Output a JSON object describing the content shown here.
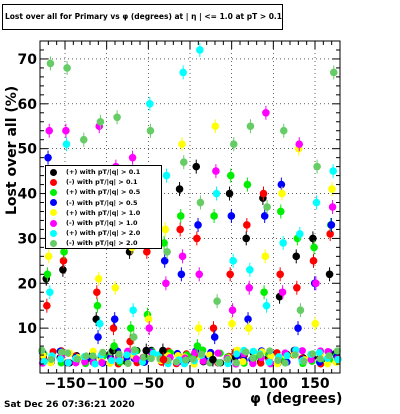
{
  "title": "Lost over all for Primary vs φ (degrees) at | η | <= 1.0 at pT > 0.11",
  "datestamp": "Sat Dec 26 07:36:21 2020",
  "chart_data": {
    "type": "scatter",
    "xlabel": "φ (degrees)",
    "ylabel": "Lost over all (%)",
    "xlim": [
      -180,
      180
    ],
    "ylim": [
      0,
      74
    ],
    "xticks": [
      -150,
      -100,
      -50,
      0,
      50,
      100,
      150
    ],
    "yticks": [
      10,
      20,
      30,
      40,
      50,
      60,
      70
    ],
    "grid": true,
    "legend_position": "left-middle",
    "series": [
      {
        "name": "(+) with pT/|q| > 0.1",
        "color": "#000000",
        "x": [
          -170,
          -150,
          -130,
          -110,
          -90,
          -70,
          -50,
          -30,
          -10,
          10,
          30,
          50,
          70,
          90,
          110,
          130,
          150,
          170
        ],
        "y": [
          21,
          23,
          31,
          12,
          5,
          27,
          5,
          5,
          41,
          46,
          3,
          40,
          30,
          39,
          17,
          26,
          30,
          22
        ]
      },
      {
        "name": "(-) with pT/|q| > 0.1",
        "color": "#ff0000",
        "x": [
          -170,
          -150,
          -130,
          -110,
          -90,
          -70,
          -50,
          -30,
          -10,
          10,
          30,
          50,
          70,
          90,
          110,
          130,
          150,
          170
        ],
        "y": [
          15,
          25,
          36,
          18,
          10,
          7,
          27,
          3,
          32,
          30,
          10,
          22,
          33,
          40,
          22,
          19,
          25,
          31
        ]
      },
      {
        "name": "(+) with pT/|q| > 0.5",
        "color": "#00ee00",
        "x": [
          -170,
          -150,
          -130,
          -110,
          -90,
          -70,
          -50,
          -30,
          -10,
          10,
          30,
          50,
          70,
          90,
          110,
          130,
          150,
          170
        ],
        "y": [
          22,
          27,
          42,
          15,
          6,
          10,
          13,
          29,
          35,
          6,
          35,
          44,
          42,
          18,
          36,
          30,
          28,
          33
        ]
      },
      {
        "name": "(-) with pT/|q| > 0.5",
        "color": "#0000ff",
        "x": [
          -170,
          -150,
          -130,
          -110,
          -90,
          -70,
          -50,
          -30,
          -10,
          10,
          30,
          50,
          70,
          90,
          110,
          130,
          150,
          170
        ],
        "y": [
          48,
          33,
          33,
          8,
          12,
          40,
          32,
          25,
          22,
          33,
          8,
          35,
          12,
          35,
          42,
          10,
          20,
          33
        ]
      },
      {
        "name": "(+) with pT/|q| > 1.0",
        "color": "#ffff00",
        "x": [
          -170,
          -150,
          -130,
          -110,
          -90,
          -70,
          -50,
          -30,
          -10,
          10,
          30,
          50,
          70,
          90,
          110,
          130,
          150,
          170
        ],
        "y": [
          26,
          29,
          30,
          21,
          19,
          28,
          12,
          32,
          51,
          10,
          55,
          11,
          10,
          26,
          40,
          50,
          11,
          41
        ]
      },
      {
        "name": "(-) with pT/|q| > 1.0",
        "color": "#ff00ff",
        "x": [
          -170,
          -150,
          -130,
          -110,
          -90,
          -70,
          -50,
          -30,
          -10,
          10,
          30,
          50,
          70,
          90,
          110,
          130,
          150,
          170
        ],
        "y": [
          54,
          54,
          31,
          55,
          46,
          48,
          10,
          20,
          26,
          22,
          45,
          14,
          19,
          58,
          18,
          51,
          20,
          37
        ]
      },
      {
        "name": "(+) with pT/|q| > 2.0",
        "color": "#00ffff",
        "x": [
          -170,
          -150,
          -130,
          -110,
          -90,
          -70,
          -50,
          -30,
          -10,
          10,
          30,
          50,
          70,
          90,
          110,
          130,
          150,
          170
        ],
        "y": [
          18,
          51,
          40,
          11,
          35,
          14,
          60,
          44,
          67,
          72,
          40,
          25,
          23,
          15,
          29,
          31,
          38,
          45
        ]
      },
      {
        "name": "(-) with pT/|q| > 2.0",
        "color": "#66cc66",
        "x": [
          -170,
          -150,
          -130,
          -110,
          -90,
          -70,
          -50,
          -30,
          -10,
          10,
          30,
          50,
          70,
          90,
          110,
          130,
          150,
          170
        ],
        "y": [
          69,
          68,
          52,
          56,
          57,
          8,
          54,
          27,
          47,
          38,
          16,
          51,
          55,
          37,
          54,
          14,
          46,
          67
        ]
      }
    ]
  }
}
